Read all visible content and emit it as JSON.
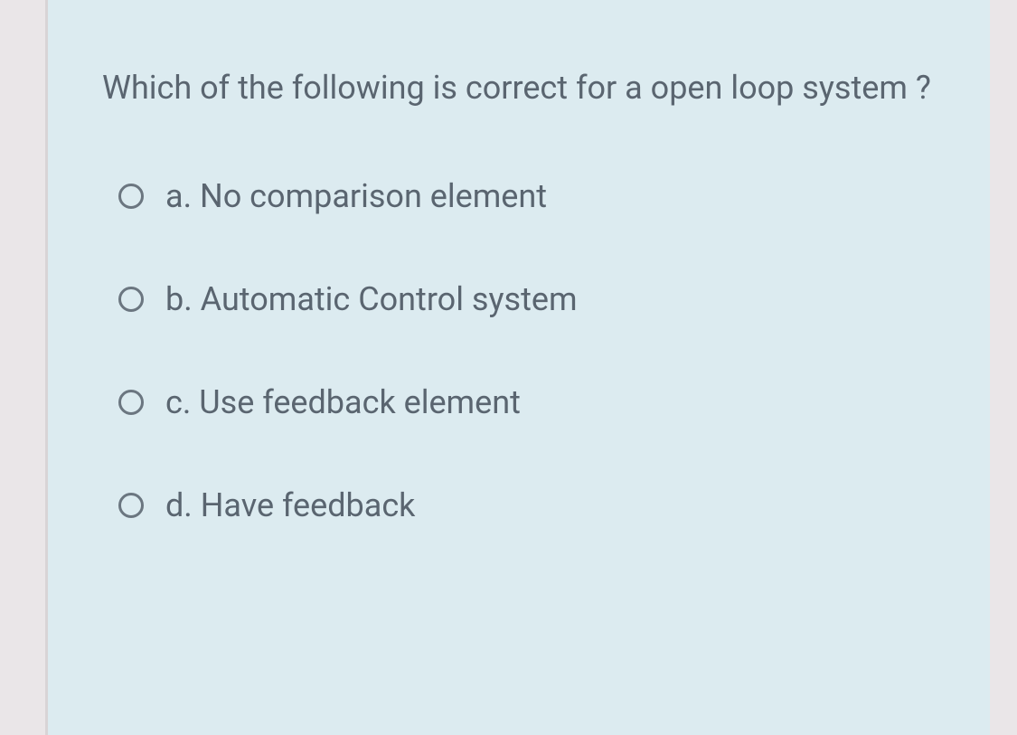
{
  "question": {
    "text": "Which of the following is correct for a open loop system ?",
    "options": [
      {
        "letter": "a.",
        "text": "No comparison element"
      },
      {
        "letter": "b.",
        "text": "Automatic Control system"
      },
      {
        "letter": "c.",
        "text": "Use feedback element"
      },
      {
        "letter": "d.",
        "text": "Have feedback"
      }
    ]
  },
  "colors": {
    "page_bg": "#eae6e8",
    "card_bg": "#dcebf0",
    "text": "#5a6570",
    "radio_border": "#6b7680"
  }
}
